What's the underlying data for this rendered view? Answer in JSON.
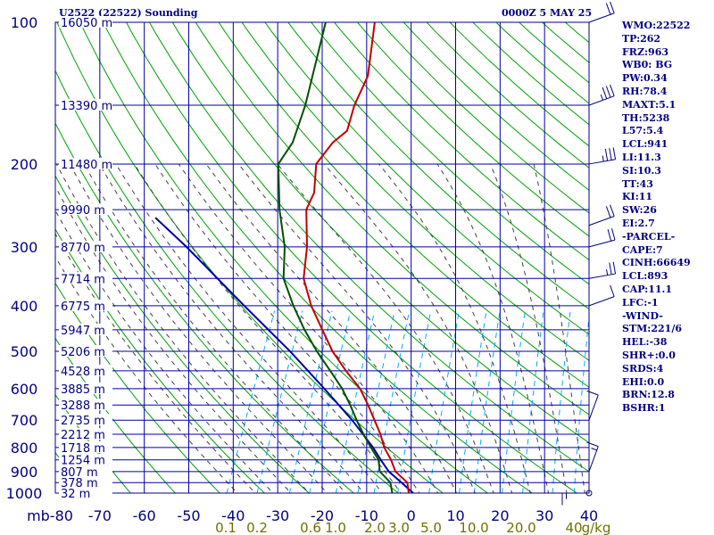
{
  "header": {
    "title": "U2522 (22522) Sounding",
    "valid_time": "0000Z  5 MAY 25"
  },
  "indices": [
    "WMO:22522",
    "TP:262",
    "FRZ:963",
    "WB0: BG",
    "PW:0.34",
    "RH:78.4",
    "MAXT:5.1",
    "TH:5238",
    "L57:5.4",
    "LCL:941",
    "LI:11.3",
    "SI:10.3",
    "TT:43",
    "KI:11",
    "SW:26",
    "EI:2.7",
    "-PARCEL-",
    "CAPE:7",
    "CINH:66649",
    "LCL:893",
    "CAP:11.1",
    "LFC:-1",
    "-WIND-",
    "STM:221/6",
    "HEL:-38",
    "SHR+:0.0",
    "SRDS:4",
    "EHI:0.0",
    "BRN:12.8",
    "BSHR:1"
  ],
  "colors": {
    "frame": "#000080",
    "isobar": "#0000a0",
    "isotherm": "#0000a0",
    "dry_adiabat": "#00a000",
    "moist_adiabat": "#404040",
    "mixing_ratio": "#00aaff",
    "temperature": "#c00000",
    "dewpoint": "#005000",
    "parcel": "#0000a0",
    "label": "#000080",
    "mixing_label": "#707000"
  },
  "chart_data": {
    "type": "skew-t log-p sounding",
    "y_unit": "mb",
    "x_unit": "°C",
    "pressure_levels": [
      100,
      200,
      300,
      400,
      500,
      600,
      700,
      800,
      900,
      1000
    ],
    "pressure_tick_labels": [
      "100",
      "200",
      "300",
      "400",
      "500",
      "600",
      "700",
      "800",
      "900",
      "1000"
    ],
    "temperature_ticks": [
      -80,
      -70,
      -60,
      -50,
      -40,
      -30,
      -20,
      -10,
      0,
      10,
      20,
      30,
      40
    ],
    "temperature_tick_labels": [
      "mb-80",
      "-70",
      "-60",
      "-50",
      "-40",
      "-30",
      "-20",
      "-10",
      "0",
      "10",
      "20",
      "30",
      "40"
    ],
    "height_labels": [
      {
        "p": 100,
        "text": "16050 m"
      },
      {
        "p": 150,
        "text": "13390 m"
      },
      {
        "p": 200,
        "text": "11480 m"
      },
      {
        "p": 250,
        "text": "9990 m"
      },
      {
        "p": 300,
        "text": "8770 m"
      },
      {
        "p": 350,
        "text": "7714 m"
      },
      {
        "p": 400,
        "text": "6775 m"
      },
      {
        "p": 450,
        "text": "5947 m"
      },
      {
        "p": 500,
        "text": "5206 m"
      },
      {
        "p": 550,
        "text": "4528 m"
      },
      {
        "p": 600,
        "text": "3885 m"
      },
      {
        "p": 650,
        "text": "3288 m"
      },
      {
        "p": 700,
        "text": "2735 m"
      },
      {
        "p": 750,
        "text": "2212 m"
      },
      {
        "p": 800,
        "text": "1718 m"
      },
      {
        "p": 850,
        "text": "1254 m"
      },
      {
        "p": 900,
        "text": "807 m"
      },
      {
        "p": 950,
        "text": "378 m"
      },
      {
        "p": 1000,
        "text": "32 m"
      }
    ],
    "mixing_ratio_labels": [
      {
        "w": 0.1,
        "text": "0.1"
      },
      {
        "w": 0.2,
        "text": "0.2"
      },
      {
        "w": 0.6,
        "text": "0.6"
      },
      {
        "w": 1.0,
        "text": "1.0"
      },
      {
        "w": 2.0,
        "text": "2.0"
      },
      {
        "w": 3.0,
        "text": "3.0"
      },
      {
        "w": 5.0,
        "text": "5.0"
      },
      {
        "w": 10.0,
        "text": "10.0"
      },
      {
        "w": 20.0,
        "text": "20.0"
      },
      {
        "w": 40.0,
        "text": "40"
      }
    ],
    "mixing_ratio_unit": "g/kg",
    "temperature_profile": [
      {
        "p": 1000,
        "t": -0.8
      },
      {
        "p": 950,
        "t": -2.2
      },
      {
        "p": 900,
        "t": -6
      },
      {
        "p": 850,
        "t": -8.2
      },
      {
        "p": 800,
        "t": -11
      },
      {
        "p": 750,
        "t": -13.2
      },
      {
        "p": 700,
        "t": -16
      },
      {
        "p": 650,
        "t": -19
      },
      {
        "p": 600,
        "t": -22.5
      },
      {
        "p": 550,
        "t": -27.5
      },
      {
        "p": 500,
        "t": -32.5
      },
      {
        "p": 450,
        "t": -37
      },
      {
        "p": 400,
        "t": -42
      },
      {
        "p": 350,
        "t": -46.5
      },
      {
        "p": 300,
        "t": -49
      },
      {
        "p": 250,
        "t": -53
      },
      {
        "p": 230,
        "t": -53
      },
      {
        "p": 200,
        "t": -55.5
      },
      {
        "p": 180,
        "t": -54
      },
      {
        "p": 170,
        "t": -52
      },
      {
        "p": 150,
        "t": -53
      },
      {
        "p": 130,
        "t": -53
      },
      {
        "p": 100,
        "t": -57
      }
    ],
    "dewpoint_profile": [
      {
        "p": 1000,
        "t": -4.5
      },
      {
        "p": 950,
        "t": -6
      },
      {
        "p": 900,
        "t": -9.5
      },
      {
        "p": 850,
        "t": -11
      },
      {
        "p": 800,
        "t": -14
      },
      {
        "p": 750,
        "t": -17
      },
      {
        "p": 700,
        "t": -20
      },
      {
        "p": 650,
        "t": -23
      },
      {
        "p": 600,
        "t": -26.5
      },
      {
        "p": 550,
        "t": -31
      },
      {
        "p": 500,
        "t": -36
      },
      {
        "p": 450,
        "t": -41
      },
      {
        "p": 400,
        "t": -46
      },
      {
        "p": 350,
        "t": -51
      },
      {
        "p": 300,
        "t": -54
      },
      {
        "p": 250,
        "t": -59
      },
      {
        "p": 200,
        "t": -64
      },
      {
        "p": 180,
        "t": -63
      },
      {
        "p": 150,
        "t": -64
      },
      {
        "p": 100,
        "t": -68
      }
    ],
    "parcel_profile": [
      {
        "p": 1000,
        "t": 0.2
      },
      {
        "p": 950,
        "t": -3.5
      },
      {
        "p": 900,
        "t": -7.5
      },
      {
        "p": 850,
        "t": -10.5
      },
      {
        "p": 800,
        "t": -13.5
      },
      {
        "p": 700,
        "t": -21
      },
      {
        "p": 600,
        "t": -30.5
      },
      {
        "p": 500,
        "t": -42
      },
      {
        "p": 400,
        "t": -57
      },
      {
        "p": 300,
        "t": -76
      },
      {
        "p": 260,
        "t": -86
      }
    ],
    "wind_barbs": [
      {
        "p": 1000,
        "dir": 90,
        "spd": 5
      },
      {
        "p": 900,
        "dir": 200,
        "spd": 5
      },
      {
        "p": 700,
        "dir": 200,
        "spd": 10
      },
      {
        "p": 400,
        "dir": 250,
        "spd": 10
      },
      {
        "p": 350,
        "dir": 260,
        "spd": 15
      },
      {
        "p": 300,
        "dir": 255,
        "spd": 20
      },
      {
        "p": 270,
        "dir": 250,
        "spd": 20
      },
      {
        "p": 200,
        "dir": 260,
        "spd": 25
      },
      {
        "p": 150,
        "dir": 250,
        "spd": 25
      },
      {
        "p": 100,
        "dir": 250,
        "spd": 20
      }
    ]
  }
}
